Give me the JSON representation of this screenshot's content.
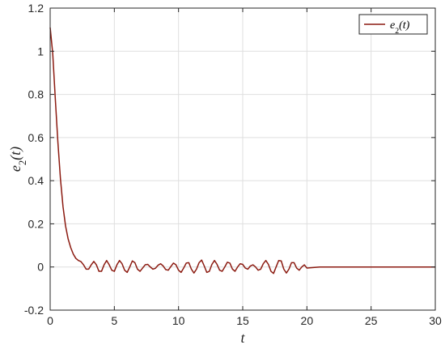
{
  "chart_data": {
    "type": "line",
    "xlabel": "t",
    "ylabel": "e_2(t)",
    "xlim": [
      0,
      30
    ],
    "ylim": [
      -0.2,
      1.2
    ],
    "xticks": [
      "0",
      "5",
      "10",
      "15",
      "20",
      "25",
      "30"
    ],
    "yticks": [
      "-0.2",
      "0",
      "0.2",
      "0.4",
      "0.6",
      "0.8",
      "1",
      "1.2"
    ],
    "grid": true,
    "legend_position": "top-right",
    "series": [
      {
        "name": "e_2(t)",
        "color": "#8b1a10",
        "x": [
          0,
          0.2,
          0.4,
          0.6,
          0.8,
          1.0,
          1.2,
          1.4,
          1.6,
          1.8,
          2.0,
          2.2,
          2.4,
          2.6,
          2.8,
          3.0,
          3.2,
          3.4,
          3.6,
          3.8,
          4.0,
          4.2,
          4.4,
          4.6,
          4.8,
          5.0,
          5.2,
          5.4,
          5.6,
          5.8,
          6.0,
          6.2,
          6.4,
          6.6,
          6.8,
          7.0,
          7.2,
          7.4,
          7.6,
          7.8,
          8.0,
          8.2,
          8.4,
          8.6,
          8.8,
          9.0,
          9.2,
          9.4,
          9.6,
          9.8,
          10.0,
          10.2,
          10.4,
          10.6,
          10.8,
          11.0,
          11.2,
          11.4,
          11.6,
          11.8,
          12.0,
          12.2,
          12.4,
          12.6,
          12.8,
          13.0,
          13.2,
          13.4,
          13.6,
          13.8,
          14.0,
          14.2,
          14.4,
          14.6,
          14.8,
          15.0,
          15.2,
          15.4,
          15.6,
          15.8,
          16.0,
          16.2,
          16.4,
          16.6,
          16.8,
          17.0,
          17.2,
          17.4,
          17.6,
          17.8,
          18.0,
          18.2,
          18.4,
          18.6,
          18.8,
          19.0,
          19.2,
          19.4,
          19.6,
          19.8,
          20.0,
          21,
          22,
          24,
          26,
          28,
          30
        ],
        "y": [
          1.11,
          0.99,
          0.78,
          0.58,
          0.41,
          0.28,
          0.19,
          0.13,
          0.09,
          0.06,
          0.04,
          0.03,
          0.025,
          0.01,
          -0.01,
          -0.01,
          0.01,
          0.026,
          0.01,
          -0.02,
          -0.02,
          0.01,
          0.03,
          0.01,
          -0.015,
          -0.02,
          0.01,
          0.03,
          0.015,
          -0.015,
          -0.025,
          0.0,
          0.028,
          0.02,
          -0.01,
          -0.02,
          -0.005,
          0.01,
          0.012,
          0.0,
          -0.01,
          -0.006,
          0.008,
          0.015,
          0.005,
          -0.012,
          -0.015,
          0.002,
          0.018,
          0.01,
          -0.015,
          -0.025,
          -0.005,
          0.018,
          0.02,
          -0.01,
          -0.028,
          -0.01,
          0.02,
          0.032,
          0.005,
          -0.025,
          -0.02,
          0.012,
          0.03,
          0.012,
          -0.015,
          -0.02,
          0.0,
          0.022,
          0.018,
          -0.01,
          -0.02,
          0.0,
          0.015,
          0.012,
          -0.005,
          -0.01,
          0.005,
          0.01,
          0.0,
          -0.015,
          -0.01,
          0.015,
          0.03,
          0.012,
          -0.02,
          -0.03,
          0.0,
          0.03,
          0.028,
          -0.01,
          -0.028,
          -0.01,
          0.02,
          0.02,
          -0.005,
          -0.015,
          0.0,
          0.01,
          -0.005,
          0.0,
          0.0,
          0.0,
          0.0,
          0.0,
          0.0
        ]
      }
    ]
  }
}
